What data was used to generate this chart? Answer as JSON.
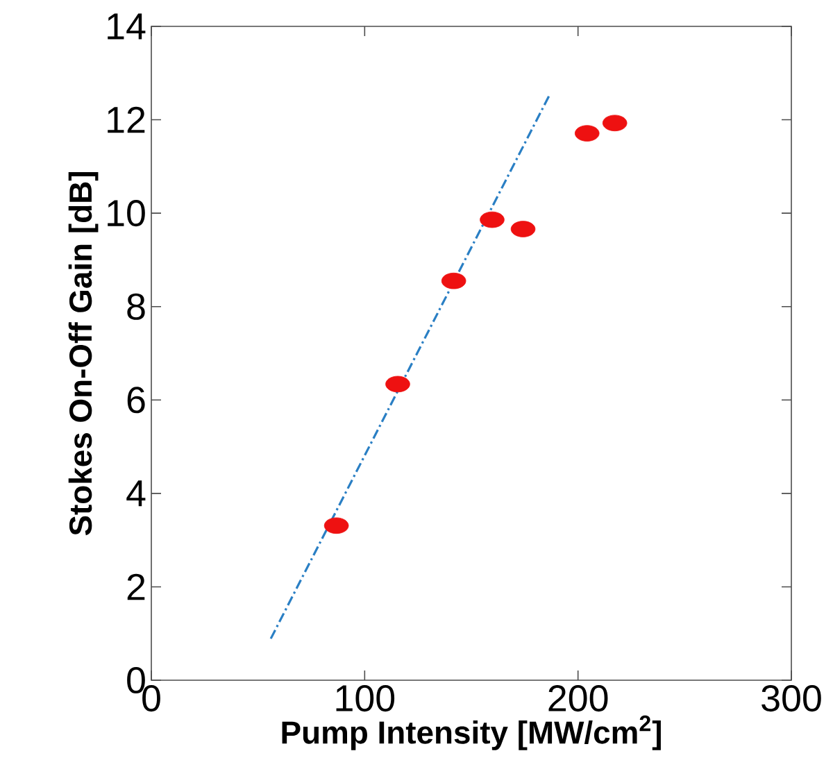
{
  "chart_data": {
    "type": "scatter",
    "xlabel": "Pump Intensity [MW/cm$^{2}$]",
    "ylabel": "Stokes On-Off Gain [dB]",
    "xlim": [
      0,
      300
    ],
    "ylim": [
      0,
      14
    ],
    "xticks": [
      0,
      100,
      200,
      300
    ],
    "yticks": [
      0,
      2,
      4,
      6,
      8,
      10,
      12,
      14
    ],
    "grid": false,
    "series": [
      {
        "color": "#ee1111",
        "marker": "circle",
        "x": [
          86.75,
          115.5,
          141.75,
          159.75,
          174.25,
          204.25,
          217.25
        ],
        "values": [
          3.31,
          6.34,
          8.55,
          9.86,
          9.66,
          11.71,
          11.93
        ]
      },
      {
        "type": "line",
        "color": "#2a7fc4",
        "marker": "none",
        "line_style": "dashed",
        "x": [
          56,
          186.75
        ],
        "values": [
          0.89,
          12.54
        ]
      }
    ]
  }
}
